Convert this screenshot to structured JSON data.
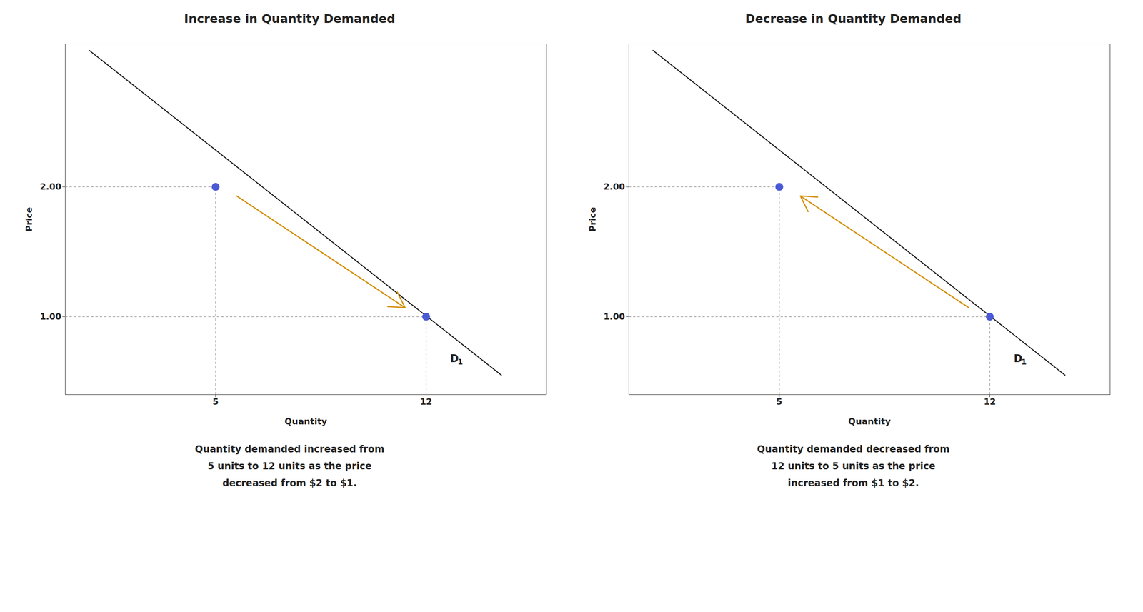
{
  "chart_data": [
    {
      "type": "line",
      "title": "Increase in Quantity Demanded",
      "xlabel": "Quantity",
      "ylabel": "Price",
      "xlim": [
        0,
        16
      ],
      "ylim": [
        0.4,
        3.1
      ],
      "xticks": [
        5,
        12
      ],
      "yticks": [
        {
          "value": 1.0,
          "label": "1.00"
        },
        {
          "value": 2.0,
          "label": "2.00"
        }
      ],
      "series": [
        {
          "type": "line",
          "x": [
            0.8,
            14.5
          ],
          "values": [
            3.05,
            0.55
          ]
        },
        {
          "type": "scatter",
          "x": [
            5,
            12
          ],
          "values": [
            2.0,
            1.0
          ],
          "color": "#4a5ad4"
        }
      ],
      "arrow": {
        "x": [
          5.7,
          11.3
        ],
        "y": [
          1.93,
          1.07
        ],
        "color": "#d4900a"
      },
      "annotations": [
        {
          "text": "D",
          "subscript": "1",
          "x": 12.8,
          "y": 0.65
        }
      ],
      "caption": "Quantity demanded increased from\n5 units to 12 units as the price\ndecreased from $2 to $1."
    },
    {
      "type": "line",
      "title": "Decrease in Quantity Demanded",
      "xlabel": "Quantity",
      "ylabel": "Price",
      "xlim": [
        0,
        16
      ],
      "ylim": [
        0.4,
        3.1
      ],
      "xticks": [
        5,
        12
      ],
      "yticks": [
        {
          "value": 1.0,
          "label": "1.00"
        },
        {
          "value": 2.0,
          "label": "2.00"
        }
      ],
      "series": [
        {
          "type": "line",
          "x": [
            0.8,
            14.5
          ],
          "values": [
            3.05,
            0.55
          ]
        },
        {
          "type": "scatter",
          "x": [
            5,
            12
          ],
          "values": [
            2.0,
            1.0
          ],
          "color": "#4a5ad4"
        }
      ],
      "arrow": {
        "x": [
          11.3,
          5.7
        ],
        "y": [
          1.07,
          1.93
        ],
        "color": "#d4900a"
      },
      "annotations": [
        {
          "text": "D",
          "subscript": "1",
          "x": 12.8,
          "y": 0.65
        }
      ],
      "caption": "Quantity demanded decreased from\n12 units to 5 units as the price\nincreased from $1 to $2."
    }
  ]
}
